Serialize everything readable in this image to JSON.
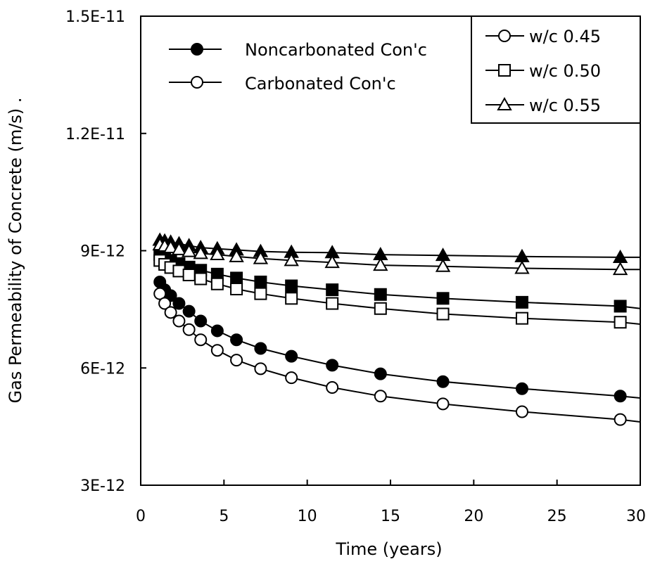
{
  "chart_data": {
    "type": "scatter",
    "xlabel": "Time (years)",
    "ylabel": "Gas Permeability of Concrete (m/s) .",
    "xlim": [
      0,
      30
    ],
    "ylim": [
      3e-12,
      1.5e-11
    ],
    "x_ticks": [
      0,
      5,
      10,
      15,
      20,
      25,
      30
    ],
    "x_tick_labels": [
      "0",
      "5",
      "10",
      "15",
      "20",
      "25",
      "30"
    ],
    "y_ticks": [
      3e-12,
      6e-12,
      9e-12,
      1.2e-11,
      1.5e-11
    ],
    "y_tick_labels": [
      "3E-12",
      "6E-12",
      "9E-12",
      "1.2E-11",
      "1.5E-11"
    ],
    "grid": false,
    "legend_condition": {
      "placement": "top-left",
      "items": [
        {
          "label": "Noncarbonated Con'c",
          "fill": "filled"
        },
        {
          "label": "Carbonated Con'c",
          "fill": "open"
        }
      ]
    },
    "legend_wc": {
      "placement": "top-right",
      "items": [
        {
          "label": "w/c 0.45",
          "marker": "circle"
        },
        {
          "label": "w/c 0.50",
          "marker": "square"
        },
        {
          "label": "w/c 0.55",
          "marker": "triangle"
        }
      ]
    },
    "x": [
      1.15,
      1.44,
      1.8,
      2.3,
      2.9,
      3.6,
      4.6,
      5.75,
      7.2,
      9.05,
      11.5,
      14.4,
      18.15,
      22.9,
      28.8
    ],
    "series": [
      {
        "name": "w/c 0.45 Noncarbonated Con'c",
        "marker": "circle",
        "fill": "filled",
        "values": [
          8.2e-12,
          8e-12,
          7.85e-12,
          7.65e-12,
          7.45e-12,
          7.2e-12,
          6.95e-12,
          6.72e-12,
          6.5e-12,
          6.3e-12,
          6.07e-12,
          5.85e-12,
          5.65e-12,
          5.47e-12,
          5.28e-12
        ],
        "line_end": 5.23e-12
      },
      {
        "name": "w/c 0.45 Carbonated Con'c",
        "marker": "circle",
        "fill": "open",
        "values": [
          7.9e-12,
          7.65e-12,
          7.42e-12,
          7.2e-12,
          6.98e-12,
          6.72e-12,
          6.45e-12,
          6.2e-12,
          5.98e-12,
          5.75e-12,
          5.5e-12,
          5.28e-12,
          5.08e-12,
          4.88e-12,
          4.68e-12
        ],
        "line_end": 4.62e-12
      },
      {
        "name": "w/c 0.50 Noncarbonated Con'c",
        "marker": "square",
        "fill": "filled",
        "values": [
          8.9e-12,
          8.82e-12,
          8.75e-12,
          8.67e-12,
          8.58e-12,
          8.5e-12,
          8.4e-12,
          8.3e-12,
          8.2e-12,
          8.1e-12,
          8e-12,
          7.88e-12,
          7.78e-12,
          7.68e-12,
          7.58e-12
        ],
        "line_end": 7.52e-12
      },
      {
        "name": "w/c 0.50 Carbonated Con'c",
        "marker": "square",
        "fill": "open",
        "values": [
          8.75e-12,
          8.65e-12,
          8.57e-12,
          8.48e-12,
          8.38e-12,
          8.28e-12,
          8.15e-12,
          8.02e-12,
          7.9e-12,
          7.78e-12,
          7.65e-12,
          7.52e-12,
          7.38e-12,
          7.27e-12,
          7.17e-12
        ],
        "line_end": 7.12e-12
      },
      {
        "name": "w/c 0.55 Noncarbonated Con'c",
        "marker": "triangle",
        "fill": "filled",
        "values": [
          9.27e-12,
          9.25e-12,
          9.22e-12,
          9.18e-12,
          9.13e-12,
          9.08e-12,
          9.05e-12,
          9.02e-12,
          8.98e-12,
          8.96e-12,
          8.95e-12,
          8.9e-12,
          8.88e-12,
          8.85e-12,
          8.83e-12
        ],
        "line_end": 8.83e-12
      },
      {
        "name": "w/c 0.55 Carbonated Con'c",
        "marker": "triangle",
        "fill": "open",
        "values": [
          9.15e-12,
          9.12e-12,
          9.08e-12,
          9.03e-12,
          8.98e-12,
          8.93e-12,
          8.9e-12,
          8.85e-12,
          8.8e-12,
          8.75e-12,
          8.7e-12,
          8.63e-12,
          8.6e-12,
          8.55e-12,
          8.52e-12
        ],
        "line_end": 8.52e-12
      }
    ]
  }
}
